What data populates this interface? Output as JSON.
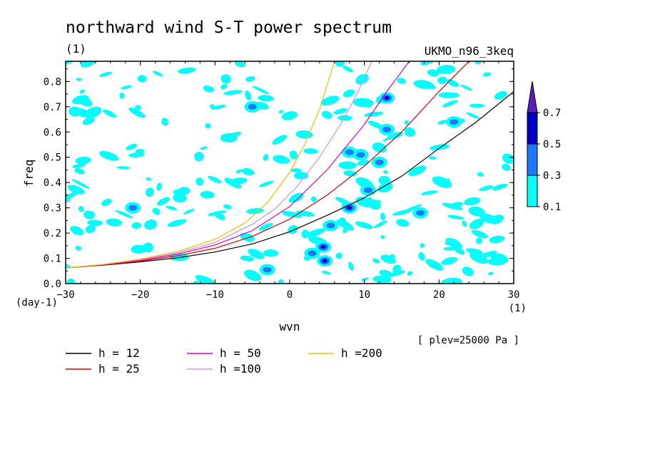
{
  "chart_data": {
    "type": "heatmap",
    "title": "northward wind S-T power spectrum",
    "subtitle_left": "(1)",
    "subtitle_right": "UKMO_n96_3keq",
    "xlabel": "wvn",
    "ylabel": "freq",
    "x_unit": "(1)",
    "y_unit": "(day-1)",
    "level_note": "[ plev=25000 Pa ]",
    "xlim": [
      -30,
      30
    ],
    "ylim": [
      0,
      0.88
    ],
    "x_ticks": [
      -30,
      -20,
      -10,
      0,
      10,
      20,
      30
    ],
    "y_ticks": [
      0.0,
      0.1,
      0.2,
      0.3,
      0.4,
      0.5,
      0.6,
      0.7,
      0.8
    ],
    "colorbar": {
      "levels": [
        0.1,
        0.3,
        0.5,
        0.7
      ],
      "colors": [
        "#00ffff",
        "#1e78ff",
        "#0000c8",
        "#5a1ebe"
      ]
    },
    "contours": [
      {
        "x": 4.5,
        "y": 0.145,
        "level": 0.5
      },
      {
        "x": 4.7,
        "y": 0.09,
        "level": 0.5
      },
      {
        "x": 8.0,
        "y": 0.3,
        "level": 0.5
      },
      {
        "x": 13.0,
        "y": 0.735,
        "level": 0.5
      },
      {
        "x": 9.5,
        "y": 0.51,
        "level": 0.3
      },
      {
        "x": 12.0,
        "y": 0.48,
        "level": 0.3
      },
      {
        "x": 8.0,
        "y": 0.52,
        "level": 0.3
      },
      {
        "x": 5.5,
        "y": 0.23,
        "level": 0.3
      },
      {
        "x": 10.5,
        "y": 0.37,
        "level": 0.3
      },
      {
        "x": -5.0,
        "y": 0.7,
        "level": 0.3
      },
      {
        "x": 3.0,
        "y": 0.12,
        "level": 0.3
      },
      {
        "x": -3.0,
        "y": 0.055,
        "level": 0.3
      },
      {
        "x": 13.0,
        "y": 0.61,
        "level": 0.3
      },
      {
        "x": 22.0,
        "y": 0.64,
        "level": 0.3
      },
      {
        "x": -21.0,
        "y": 0.3,
        "level": 0.3
      },
      {
        "x": 17.5,
        "y": 0.28,
        "level": 0.3
      }
    ],
    "series": [
      {
        "name": "h = 12",
        "color": "#000000",
        "x": [
          -30,
          -25,
          -20,
          -15,
          -10,
          -5,
          0,
          5,
          10,
          15,
          20,
          25,
          30
        ],
        "y": [
          0.062,
          0.073,
          0.086,
          0.102,
          0.125,
          0.157,
          0.205,
          0.27,
          0.34,
          0.425,
          0.535,
          0.64,
          0.76
        ]
      },
      {
        "name": "h = 25",
        "color": "#e00000",
        "x": [
          -30,
          -25,
          -20,
          -15,
          -10,
          -5,
          0,
          5,
          10,
          15,
          20,
          24
        ],
        "y": [
          0.062,
          0.074,
          0.089,
          0.11,
          0.14,
          0.187,
          0.255,
          0.35,
          0.465,
          0.6,
          0.76,
          0.88
        ]
      },
      {
        "name": "h = 50",
        "color": "#e000c0",
        "x": [
          -30,
          -25,
          -20,
          -15,
          -10,
          -5,
          0,
          5,
          10,
          13,
          16
        ],
        "y": [
          0.062,
          0.075,
          0.092,
          0.117,
          0.153,
          0.21,
          0.305,
          0.45,
          0.63,
          0.76,
          0.88
        ]
      },
      {
        "name": "h =100",
        "color": "#d890e0",
        "x": [
          -30,
          -25,
          -20,
          -15,
          -10,
          -5,
          -2,
          1,
          4,
          7,
          9,
          11
        ],
        "y": [
          0.062,
          0.076,
          0.095,
          0.122,
          0.163,
          0.235,
          0.295,
          0.385,
          0.5,
          0.64,
          0.75,
          0.88
        ]
      },
      {
        "name": "h =200",
        "color": "#f0c000",
        "x": [
          -30,
          -25,
          -20,
          -15,
          -10,
          -6,
          -3,
          0,
          2,
          4,
          6
        ],
        "y": [
          0.062,
          0.076,
          0.097,
          0.127,
          0.175,
          0.24,
          0.32,
          0.44,
          0.55,
          0.69,
          0.88
        ]
      }
    ]
  }
}
